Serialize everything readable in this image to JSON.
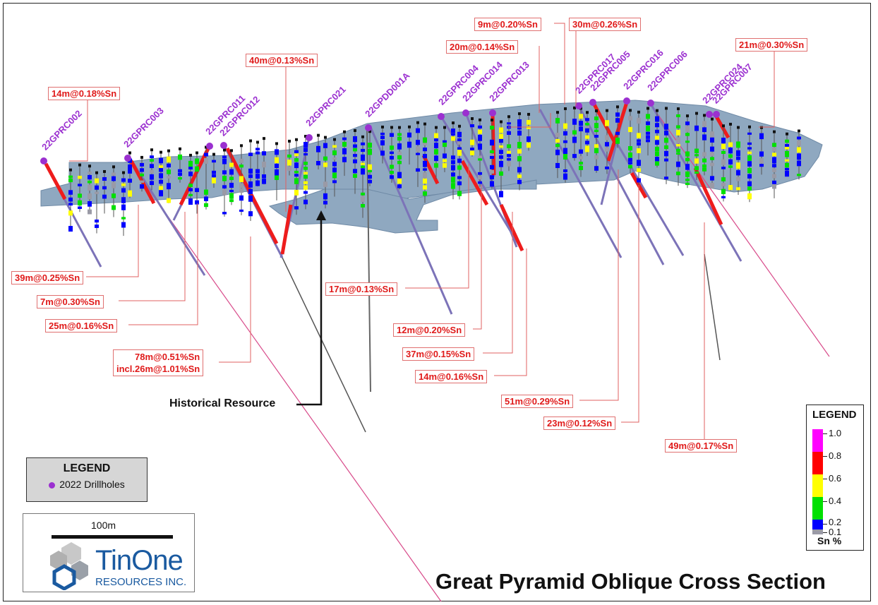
{
  "title": "Great Pyramid Oblique Cross Section",
  "historical_label": "Historical Resource",
  "drillhole_legend": {
    "title": "LEGEND",
    "entry": "2022 Drillholes"
  },
  "scale": {
    "label": "100m"
  },
  "logo": {
    "name": "TinOne",
    "sub": "RESOURCES INC."
  },
  "sn_legend": {
    "title": "LEGEND",
    "unit": "Sn %",
    "ticks": [
      "1.0",
      "0.8",
      "0.6",
      "0.4",
      "0.2",
      "0.1"
    ],
    "colors": [
      "#ff00ff",
      "#ff0000",
      "#ffff00",
      "#00e000",
      "#0000ff",
      "#9a9aa6"
    ]
  },
  "colors": {
    "resource": "#8fa8c0",
    "intercept": "#ee1c1c",
    "hole": "#9b30d0",
    "label_text": "#e01a1a"
  },
  "holes": [
    "22GPRC002",
    "22GPRC003",
    "22GPRC011",
    "22GPRC012",
    "22GPRC021",
    "22GPDD001A",
    "22GPRC004",
    "22GPRC014",
    "22GPRC013",
    "22GPRC017",
    "22GPRC005",
    "22GPRC016",
    "22GPRC006",
    "22GPRC024",
    "22GPRC007"
  ],
  "intercepts": [
    "14m@0.18%Sn",
    "40m@0.13%Sn",
    "9m@0.20%Sn",
    "30m@0.26%Sn",
    "20m@0.14%Sn",
    "21m@0.30%Sn",
    "39m@0.25%Sn",
    "7m@0.30%Sn",
    "25m@0.16%Sn",
    "78m@0.51%Sn",
    "incl.26m@1.01%Sn",
    "17m@0.13%Sn",
    "12m@0.20%Sn",
    "37m@0.15%Sn",
    "14m@0.16%Sn",
    "51m@0.29%Sn",
    "23m@0.12%Sn",
    "49m@0.17%Sn"
  ]
}
